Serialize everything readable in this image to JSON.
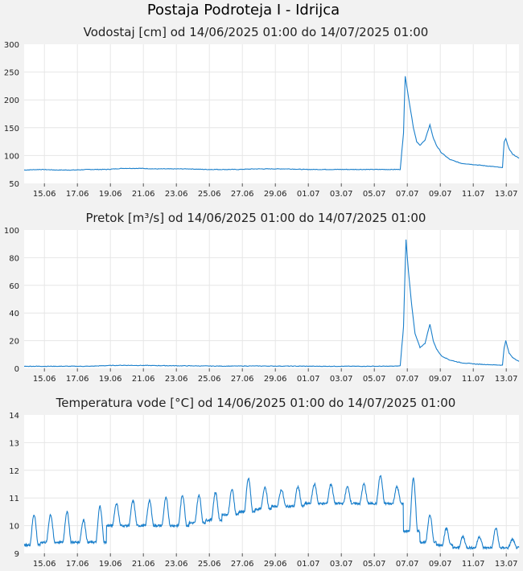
{
  "page": {
    "title": "Postaja Podroteja I - Idrijca"
  },
  "colors": {
    "line": "#1a7fcb",
    "plot_bg": "#ffffff",
    "grid": "#e6e6e6",
    "page_bg": "#f2f2f2"
  },
  "chart_data": [
    {
      "type": "line",
      "title": "Vodostaj [cm] od 14/06/2025 01:00 do 14/07/2025 01:00",
      "xlabel": "",
      "ylabel": "",
      "ylim": [
        50,
        300
      ],
      "yticks": [
        "300",
        "250",
        "200",
        "150",
        "100",
        "50"
      ],
      "xticks": [
        "15.06",
        "17.06",
        "19.06",
        "21.06",
        "23.06",
        "25.06",
        "27.06",
        "29.06",
        "01.07",
        "03.07",
        "05.07",
        "07.07",
        "09.07",
        "11.07",
        "13.07"
      ],
      "grid": true,
      "x_days": [
        0,
        1,
        2,
        3,
        4,
        5,
        6,
        7,
        8,
        9,
        10,
        11,
        12,
        13,
        14,
        15,
        16,
        17,
        18,
        19,
        20,
        21,
        22,
        22.5,
        22.8,
        23.0,
        23.1,
        23.3,
        23.6,
        23.8,
        24.0,
        24.3,
        24.6,
        24.8,
        25.0,
        25.3,
        25.8,
        26.5,
        27.5,
        28.5,
        29.0,
        29.1,
        29.2,
        29.4,
        29.6,
        30.0
      ],
      "series": [
        {
          "values": [
            74,
            75,
            74,
            74,
            75,
            75,
            77,
            77,
            76,
            76,
            76,
            75,
            75,
            75,
            76,
            76,
            76,
            75,
            75,
            75,
            75,
            75,
            75,
            75,
            75,
            140,
            243,
            205,
            150,
            125,
            118,
            128,
            155,
            132,
            118,
            105,
            93,
            86,
            83,
            80,
            78,
            125,
            130,
            112,
            103,
            95
          ]
        }
      ]
    },
    {
      "type": "line",
      "title": "Pretok [m³/s] od 14/06/2025 01:00 do 14/07/2025 01:00",
      "xlabel": "",
      "ylabel": "",
      "ylim": [
        0,
        100
      ],
      "yticks": [
        "100",
        "80",
        "60",
        "40",
        "20",
        "0"
      ],
      "xticks": [
        "15.06",
        "17.06",
        "19.06",
        "21.06",
        "23.06",
        "25.06",
        "27.06",
        "29.06",
        "01.07",
        "03.07",
        "05.07",
        "07.07",
        "09.07",
        "11.07",
        "13.07"
      ],
      "grid": true,
      "x_days": [
        0,
        2,
        4,
        5,
        6,
        8,
        10,
        12,
        14,
        16,
        18,
        20,
        22,
        22.5,
        22.8,
        23.0,
        23.15,
        23.3,
        23.5,
        23.7,
        24.0,
        24.3,
        24.6,
        24.8,
        25.0,
        25.3,
        25.8,
        26.5,
        27.5,
        28.5,
        29.0,
        29.1,
        29.2,
        29.4,
        29.6,
        30.0
      ],
      "series": [
        {
          "values": [
            1.5,
            1.5,
            1.5,
            2,
            2.2,
            2,
            1.8,
            1.6,
            1.7,
            1.6,
            1.5,
            1.5,
            1.5,
            1.6,
            1.8,
            30,
            93,
            70,
            45,
            25,
            15,
            18,
            32,
            20,
            14,
            9,
            6,
            4,
            3,
            2.5,
            2.3,
            15,
            20,
            11,
            8,
            5
          ]
        }
      ]
    },
    {
      "type": "line",
      "title": "Temperatura vode [°C] od 14/06/2025 01:00 do 14/07/2025 01:00",
      "xlabel": "",
      "ylabel": "",
      "ylim": [
        9,
        14
      ],
      "yticks": [
        "14",
        "13",
        "12",
        "11",
        "10",
        "9"
      ],
      "xticks": [
        "15.06",
        "17.06",
        "19.06",
        "21.06",
        "23.06",
        "25.06",
        "27.06",
        "29.06",
        "01.07",
        "03.07",
        "05.07",
        "07.07",
        "09.07",
        "11.07",
        "13.07"
      ],
      "grid": true,
      "diurnal_min": [
        9.3,
        9.4,
        9.4,
        9.4,
        9.4,
        10.0,
        10.0,
        10.0,
        10.0,
        10.0,
        10.1,
        10.2,
        10.4,
        10.5,
        10.6,
        10.7,
        10.7,
        10.8,
        10.8,
        10.8,
        10.8,
        10.8,
        10.8,
        9.8,
        9.4,
        9.3,
        9.2,
        9.2,
        9.2,
        9.2
      ],
      "diurnal_max": [
        10.4,
        10.4,
        10.5,
        10.2,
        10.7,
        10.8,
        10.9,
        10.9,
        11.0,
        11.1,
        11.1,
        11.2,
        11.3,
        11.7,
        11.4,
        11.3,
        11.4,
        11.5,
        11.5,
        11.4,
        11.5,
        11.8,
        11.4,
        11.7,
        10.4,
        9.9,
        9.6,
        9.6,
        9.9,
        9.5
      ]
    }
  ]
}
